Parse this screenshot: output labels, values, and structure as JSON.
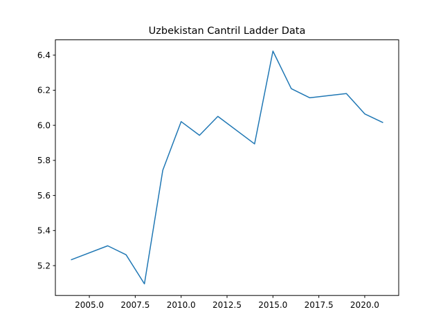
{
  "chart_data": {
    "type": "line",
    "title": "Uzbekistan Cantril Ladder Data",
    "xlabel": "",
    "ylabel": "",
    "xlim": [
      2003.15,
      2021.85
    ],
    "ylim": [
      5.0298,
      6.4872
    ],
    "xticks": [
      2005.0,
      2007.5,
      2010.0,
      2012.5,
      2015.0,
      2017.5,
      2020.0
    ],
    "xtick_labels": [
      "2005.0",
      "2007.5",
      "2010.0",
      "2012.5",
      "2015.0",
      "2017.5",
      "2020.0"
    ],
    "yticks": [
      5.2,
      5.4,
      5.6,
      5.8,
      6.0,
      6.2,
      6.4
    ],
    "ytick_labels": [
      "5.2",
      "5.4",
      "5.6",
      "5.8",
      "6.0",
      "6.2",
      "6.4"
    ],
    "grid": false,
    "series": [
      {
        "color": "#1f77b4",
        "x": [
          2004,
          2006,
          2007,
          2008,
          2009,
          2010,
          2011,
          2012,
          2014,
          2015,
          2016,
          2017,
          2019,
          2020,
          2021
        ],
        "y": [
          5.233,
          5.313,
          5.262,
          5.096,
          5.744,
          6.021,
          5.943,
          6.051,
          5.894,
          6.423,
          6.209,
          6.157,
          6.181,
          6.065,
          6.015
        ]
      }
    ]
  }
}
